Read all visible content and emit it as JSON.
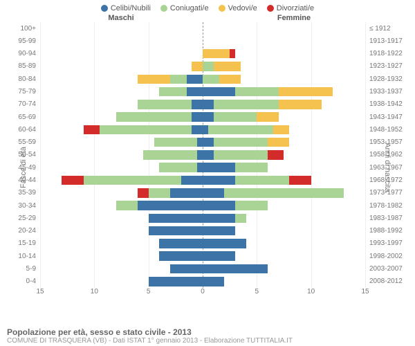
{
  "legend": [
    {
      "label": "Celibi/Nubili",
      "color": "#3c74a8"
    },
    {
      "label": "Coniugati/e",
      "color": "#aad396"
    },
    {
      "label": "Vedovi/e",
      "color": "#f6c24f"
    },
    {
      "label": "Divorziati/e",
      "color": "#d32a2a"
    }
  ],
  "gender": {
    "male": "Maschi",
    "female": "Femmine"
  },
  "axis": {
    "left_title": "Fasce di età",
    "right_title": "Anni di nascita",
    "xmax": 15,
    "xticks": [
      15,
      10,
      5,
      0,
      5,
      10,
      15
    ]
  },
  "colors": {
    "celibi": "#3c74a8",
    "coniugati": "#aad396",
    "vedovi": "#f6c24f",
    "divorziati": "#d32a2a",
    "grid": "#eeeeee",
    "center": "#999999",
    "bg": "#ffffff"
  },
  "rows": [
    {
      "age": "100+",
      "birth": "≤ 1912",
      "m": [
        0,
        0,
        0,
        0
      ],
      "f": [
        0,
        0,
        0,
        0
      ]
    },
    {
      "age": "95-99",
      "birth": "1913-1917",
      "m": [
        0,
        0,
        0,
        0
      ],
      "f": [
        0,
        0,
        0,
        0
      ]
    },
    {
      "age": "90-94",
      "birth": "1918-1922",
      "m": [
        0,
        0,
        0,
        0
      ],
      "f": [
        0,
        0,
        2.5,
        0.5
      ]
    },
    {
      "age": "85-89",
      "birth": "1923-1927",
      "m": [
        0,
        0,
        1,
        0
      ],
      "f": [
        0,
        1,
        2.5,
        0
      ]
    },
    {
      "age": "80-84",
      "birth": "1928-1932",
      "m": [
        1.5,
        1.5,
        3,
        0
      ],
      "f": [
        0,
        1.5,
        2,
        0
      ]
    },
    {
      "age": "75-79",
      "birth": "1933-1937",
      "m": [
        1.5,
        2.5,
        0,
        0
      ],
      "f": [
        3,
        4,
        5,
        0
      ]
    },
    {
      "age": "70-74",
      "birth": "1938-1942",
      "m": [
        1,
        5,
        0,
        0
      ],
      "f": [
        1,
        6,
        4,
        0
      ]
    },
    {
      "age": "65-69",
      "birth": "1943-1947",
      "m": [
        1,
        7,
        0,
        0
      ],
      "f": [
        1,
        4,
        2,
        0
      ]
    },
    {
      "age": "60-64",
      "birth": "1948-1952",
      "m": [
        1,
        8.5,
        0,
        1.5
      ],
      "f": [
        0.5,
        6,
        1.5,
        0
      ]
    },
    {
      "age": "55-59",
      "birth": "1953-1957",
      "m": [
        0.5,
        4,
        0,
        0
      ],
      "f": [
        1,
        5,
        2,
        0
      ]
    },
    {
      "age": "50-54",
      "birth": "1958-1962",
      "m": [
        0.5,
        5,
        0,
        0
      ],
      "f": [
        1,
        5,
        0,
        1.5
      ]
    },
    {
      "age": "45-49",
      "birth": "1963-1967",
      "m": [
        0.5,
        3.5,
        0,
        0
      ],
      "f": [
        3,
        3,
        0,
        0
      ]
    },
    {
      "age": "40-44",
      "birth": "1968-1972",
      "m": [
        2,
        9,
        0,
        2
      ],
      "f": [
        3,
        5,
        0,
        2
      ]
    },
    {
      "age": "35-39",
      "birth": "1973-1977",
      "m": [
        3,
        2,
        0,
        1
      ],
      "f": [
        2,
        11,
        0,
        0
      ]
    },
    {
      "age": "30-34",
      "birth": "1978-1982",
      "m": [
        6,
        2,
        0,
        0
      ],
      "f": [
        3,
        3,
        0,
        0
      ]
    },
    {
      "age": "25-29",
      "birth": "1983-1987",
      "m": [
        5,
        0,
        0,
        0
      ],
      "f": [
        3,
        1,
        0,
        0
      ]
    },
    {
      "age": "20-24",
      "birth": "1988-1992",
      "m": [
        5,
        0,
        0,
        0
      ],
      "f": [
        3,
        0,
        0,
        0
      ]
    },
    {
      "age": "15-19",
      "birth": "1993-1997",
      "m": [
        4,
        0,
        0,
        0
      ],
      "f": [
        4,
        0,
        0,
        0
      ]
    },
    {
      "age": "10-14",
      "birth": "1998-2002",
      "m": [
        4,
        0,
        0,
        0
      ],
      "f": [
        3,
        0,
        0,
        0
      ]
    },
    {
      "age": "5-9",
      "birth": "2003-2007",
      "m": [
        3,
        0,
        0,
        0
      ],
      "f": [
        6,
        0,
        0,
        0
      ]
    },
    {
      "age": "0-4",
      "birth": "2008-2012",
      "m": [
        5,
        0,
        0,
        0
      ],
      "f": [
        2,
        0,
        0,
        0
      ]
    }
  ],
  "footer": {
    "title": "Popolazione per età, sesso e stato civile - 2013",
    "sub": "COMUNE DI TRASQUERA (VB) - Dati ISTAT 1° gennaio 2013 - Elaborazione TUTTITALIA.IT"
  }
}
